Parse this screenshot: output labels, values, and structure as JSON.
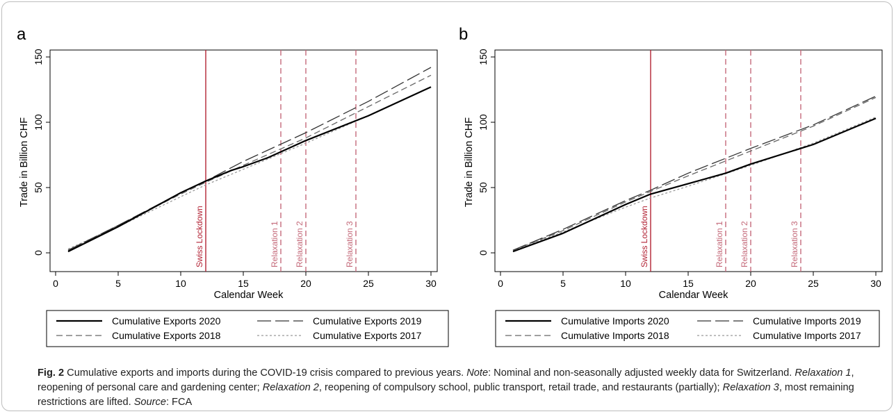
{
  "caption": {
    "fig_label": "Fig. 2",
    "text_1": " Cumulative exports and imports during the COVID-19 crisis compared to previous years. ",
    "note_label": "Note",
    "text_2": ": Nominal and non-seasonally adjusted weekly data for Switzerland. ",
    "relax1_label": "Relaxation 1",
    "relax1_text": ", reopening of personal care and gardening center; ",
    "relax2_label": "Relaxation 2",
    "relax2_text": ", reopening of compulsory school, public transport, retail trade, and restaurants (partially); ",
    "relax3_label": "Relaxation 3",
    "relax3_text": ", most remaining restrictions are lifted. ",
    "source_label": "Source",
    "source_text": ": FCA"
  },
  "colors": {
    "lockdown": "#b22234",
    "relaxation": "#c46a7a",
    "series_2020": "#000000",
    "series_2019": "#333333",
    "series_2018": "#666666",
    "series_2017": "#999999"
  },
  "chart_data": [
    {
      "panel_label": "a",
      "type": "line",
      "xlabel": "Calendar Week",
      "ylabel": "Trade in Billion CHF",
      "xlim": [
        0,
        30
      ],
      "ylim": [
        0,
        150
      ],
      "xticks": [
        0,
        5,
        10,
        15,
        20,
        25,
        30
      ],
      "yticks": [
        0,
        50,
        100,
        150
      ],
      "grid": false,
      "legend_position": "bottom",
      "markers": [
        {
          "x": 12,
          "label": "Swiss Lockdown",
          "style": "solid"
        },
        {
          "x": 18,
          "label": "Relaxation 1",
          "style": "dashed"
        },
        {
          "x": 20,
          "label": "Relaxation 2",
          "style": "dashed"
        },
        {
          "x": 24,
          "label": "Relaxation 3",
          "style": "dashed"
        }
      ],
      "series": [
        {
          "name": "Cumulative Exports 2020",
          "style": "solid",
          "x": [
            1,
            5,
            10,
            12,
            14,
            15,
            17,
            20,
            25,
            30
          ],
          "y": [
            1,
            20,
            46,
            55,
            63,
            66,
            73,
            86,
            105,
            127
          ]
        },
        {
          "name": "Cumulative Exports 2019",
          "style": "longdash",
          "x": [
            1,
            5,
            10,
            12,
            15,
            20,
            25,
            30
          ],
          "y": [
            2,
            21,
            46,
            55,
            70,
            92,
            116,
            142
          ]
        },
        {
          "name": "Cumulative Exports 2018",
          "style": "dash",
          "x": [
            1,
            5,
            10,
            12,
            15,
            20,
            25,
            30
          ],
          "y": [
            2,
            21,
            45,
            54,
            67,
            88,
            112,
            136
          ]
        },
        {
          "name": "Cumulative Exports 2017",
          "style": "dot",
          "x": [
            1,
            5,
            10,
            12,
            15,
            20,
            25,
            30
          ],
          "y": [
            3,
            20,
            43,
            52,
            64,
            84,
            105,
            127
          ]
        }
      ]
    },
    {
      "panel_label": "b",
      "type": "line",
      "xlabel": "Calendar Week",
      "ylabel": "Trade in Billion CHF",
      "xlim": [
        0,
        30
      ],
      "ylim": [
        0,
        150
      ],
      "xticks": [
        0,
        5,
        10,
        15,
        20,
        25,
        30
      ],
      "yticks": [
        0,
        50,
        100,
        150
      ],
      "grid": false,
      "legend_position": "bottom",
      "markers": [
        {
          "x": 12,
          "label": "Swiss Lockdown",
          "style": "solid"
        },
        {
          "x": 18,
          "label": "Relaxation 1",
          "style": "dashed"
        },
        {
          "x": 20,
          "label": "Relaxation 2",
          "style": "dashed"
        },
        {
          "x": 24,
          "label": "Relaxation 3",
          "style": "dashed"
        }
      ],
      "series": [
        {
          "name": "Cumulative Imports 2020",
          "style": "solid",
          "x": [
            1,
            5,
            10,
            12,
            15,
            18,
            20,
            25,
            30
          ],
          "y": [
            1,
            15,
            37,
            45,
            53,
            61,
            68,
            83,
            103
          ]
        },
        {
          "name": "Cumulative Imports 2019",
          "style": "longdash",
          "x": [
            1,
            5,
            10,
            12,
            15,
            20,
            25,
            30
          ],
          "y": [
            2,
            18,
            40,
            48,
            61,
            80,
            98,
            120
          ]
        },
        {
          "name": "Cumulative Imports 2018",
          "style": "dash",
          "x": [
            1,
            5,
            10,
            12,
            15,
            20,
            25,
            30
          ],
          "y": [
            2,
            17,
            39,
            47,
            59,
            78,
            97,
            119
          ]
        },
        {
          "name": "Cumulative Imports 2017",
          "style": "dot",
          "x": [
            1,
            5,
            10,
            12,
            15,
            20,
            25,
            30
          ],
          "y": [
            2,
            16,
            35,
            42,
            51,
            67,
            84,
            104
          ]
        }
      ]
    }
  ]
}
